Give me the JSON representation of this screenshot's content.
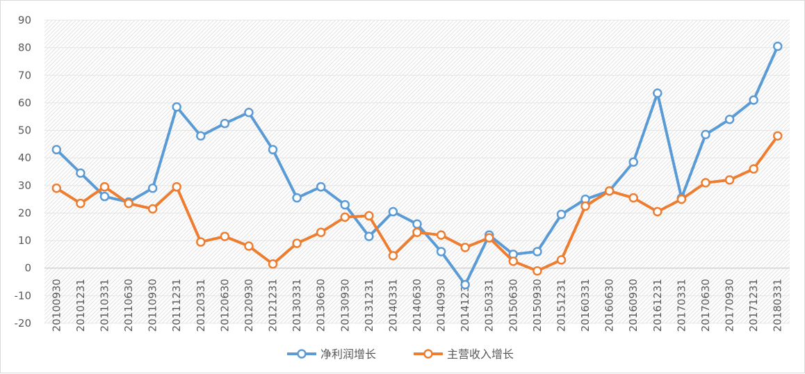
{
  "chart_data": {
    "type": "line",
    "title": "",
    "xlabel": "",
    "ylabel": "",
    "ylim": [
      -20,
      90
    ],
    "yticks": [
      -20,
      -10,
      0,
      10,
      20,
      30,
      40,
      50,
      60,
      70,
      80,
      90
    ],
    "categories": [
      "20100930",
      "20101231",
      "20110331",
      "20110630",
      "20110930",
      "20111231",
      "20120331",
      "20120630",
      "20120930",
      "20121231",
      "20130331",
      "20130630",
      "20130930",
      "20131231",
      "20140331",
      "20140630",
      "20140930",
      "20141231",
      "20150331",
      "20150630",
      "20150930",
      "20151231",
      "20160331",
      "20160630",
      "20160930",
      "20161231",
      "20170331",
      "20170630",
      "20170930",
      "20171231",
      "20180331"
    ],
    "series": [
      {
        "name": "净利润增长",
        "color": "#5B9BD5",
        "values": [
          43,
          34.5,
          26,
          24,
          29,
          58.5,
          48,
          52.5,
          56.5,
          43,
          25.5,
          29.5,
          23,
          11.5,
          20.5,
          16,
          6,
          -6,
          12,
          5,
          6,
          19.5,
          25,
          28,
          38.5,
          63.5,
          25.5,
          48.5,
          54,
          61,
          80.5
        ]
      },
      {
        "name": "主营收入增长",
        "color": "#ED7D31",
        "values": [
          29,
          23.5,
          29.5,
          23.5,
          21.5,
          29.5,
          9.5,
          11.5,
          8,
          1.5,
          9,
          13,
          18.5,
          19,
          4.5,
          13,
          12,
          7.5,
          11,
          2.5,
          -1,
          3,
          22.5,
          28,
          25.5,
          20.5,
          25,
          31,
          32,
          36,
          48
        ]
      }
    ],
    "grid": true,
    "legend_position": "bottom"
  }
}
